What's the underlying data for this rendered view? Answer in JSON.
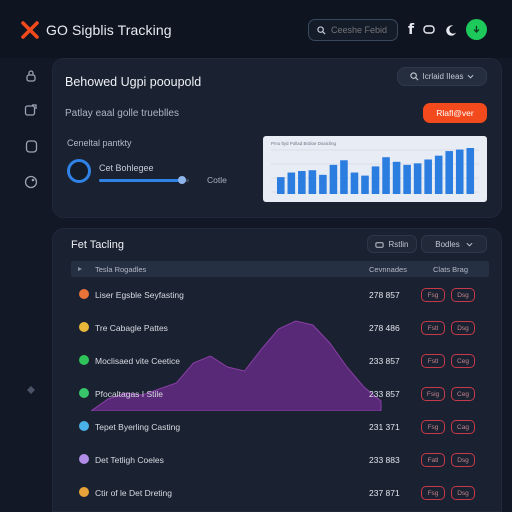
{
  "header": {
    "app_title": "GO Sigblis Tracking",
    "search_placeholder": "Ceeshe Febid"
  },
  "summary_panel": {
    "title": "Behowed Ugpi pooupold",
    "subtitle": "Patlay eaal golle trueblles",
    "pill_label": "Icrlaid IIeas",
    "orange_button": "Rlafl@ver",
    "progress_label": "Ceneltal pantkty",
    "ring_label": "Cet Bohlegee",
    "slider_value_label": "Cotle",
    "slider_level": 0.92
  },
  "mini_chart": {
    "header_text": "Pmo ltyd Pollad Brdioe Dsaicling",
    "values": [
      22,
      28,
      30,
      31,
      25,
      38,
      44,
      28,
      24,
      36,
      48,
      42,
      38,
      40,
      45,
      50,
      56,
      58,
      60
    ]
  },
  "table_panel": {
    "title": "Fet Tacling",
    "button1_label": "Rstlin",
    "button2_label": "Bodles",
    "columns": [
      "Tesla Rogadles",
      "Cevnnades",
      "Clats Brag"
    ],
    "rows": [
      {
        "name": "Liser Egsble Seyfasting",
        "count": "278 857",
        "color": "#e8743a",
        "actions": [
          "Fsg",
          "Dsg"
        ]
      },
      {
        "name": "Tre Cabagle Pattes",
        "count": "278 486",
        "color": "#e8b83a",
        "actions": [
          "Fstl",
          "Dsg"
        ]
      },
      {
        "name": "Moclisaed vite Ceetice",
        "count": "233 857",
        "color": "#2fc45a",
        "actions": [
          "Fstl",
          "Ceg"
        ]
      },
      {
        "name": "Pfocaltagas I Stile",
        "count": "233 857",
        "color": "#37c66a",
        "actions": [
          "Fsig",
          "Ceg"
        ]
      },
      {
        "name": "Tepet Byerling Casting",
        "count": "231 371",
        "color": "#4ab2e8",
        "actions": [
          "Fsg",
          "Cag"
        ]
      },
      {
        "name": "Det Tetligh Coeles",
        "count": "233 883",
        "color": "#b28de8",
        "actions": [
          "Fatl",
          "Dsg"
        ]
      },
      {
        "name": "Ctir of le Det Dreting",
        "count": "237 871",
        "color": "#e8a23a",
        "actions": [
          "Fsg",
          "Dsg"
        ]
      }
    ]
  },
  "area_chart": {
    "values": [
      0,
      12,
      18,
      16,
      22,
      28,
      48,
      55,
      44,
      40,
      62,
      82,
      90,
      86,
      68,
      44,
      24,
      10
    ]
  },
  "colors": {
    "accent_blue": "#2f82e6",
    "accent_orange": "#f24a1c",
    "accent_green": "#1ec95c",
    "area_purple": "#6a2d8c",
    "danger_red": "#c43a4a"
  }
}
